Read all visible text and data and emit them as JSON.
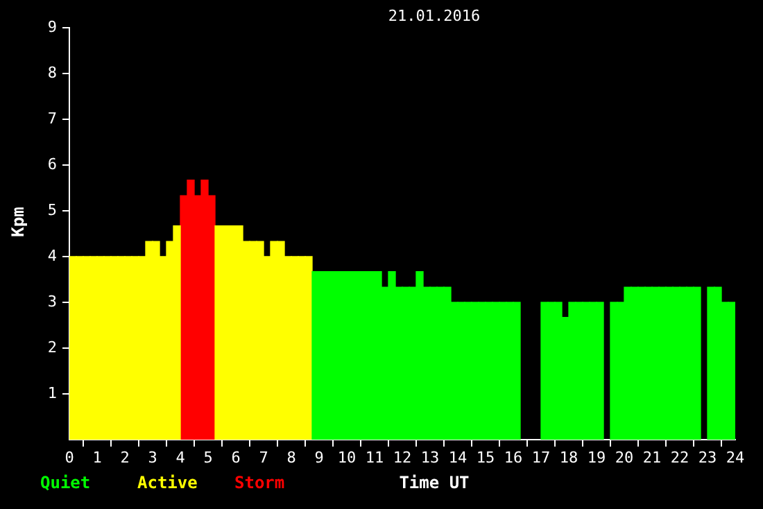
{
  "chart_data": {
    "type": "histogram",
    "title": "21.01.2016",
    "xlabel": "Time UT",
    "ylabel": "Kpm",
    "bins": [
      0,
      0.25,
      0.5,
      0.75,
      1,
      1.25,
      1.5,
      1.75,
      2,
      2.25,
      2.5,
      2.75,
      3,
      3.25,
      3.5,
      3.75,
      4,
      4.25,
      4.5,
      4.75,
      5,
      5.25,
      5.5,
      5.75,
      6,
      6.25,
      6.5,
      6.75,
      7,
      7.25,
      7.5,
      7.75,
      8,
      8.25,
      8.5,
      8.75,
      9,
      9.25,
      9.5,
      9.75,
      10,
      10.25,
      10.5,
      10.75,
      11,
      11.25,
      11.5,
      11.75,
      12,
      12.25,
      12.5,
      12.75,
      13,
      13.25,
      13.5,
      13.75,
      14,
      14.25,
      14.5,
      14.75,
      15,
      15.25,
      15.5,
      15.75,
      16,
      16.25,
      16.5,
      16.75,
      17,
      17.25,
      17.5,
      17.75,
      18,
      18.25,
      18.5,
      18.75,
      19,
      19.25,
      19.5,
      19.75,
      20,
      20.25,
      20.5,
      20.75,
      21,
      21.25,
      21.5,
      21.75,
      22,
      22.25,
      22.5,
      22.75,
      23,
      23.25,
      23.5,
      23.75,
      24
    ],
    "series": [
      {
        "name": "Quiet",
        "color": "#00ff00",
        "values": [
          null,
          null,
          null,
          null,
          null,
          null,
          null,
          null,
          null,
          null,
          null,
          null,
          null,
          null,
          null,
          null,
          null,
          null,
          null,
          null,
          null,
          null,
          null,
          null,
          null,
          null,
          null,
          null,
          null,
          null,
          null,
          null,
          null,
          null,
          null,
          3.67,
          3.67,
          3.67,
          3.67,
          3.67,
          3.67,
          3.67,
          3.67,
          3.67,
          3.67,
          3.33,
          3.67,
          3.33,
          3.33,
          3.33,
          3.67,
          3.33,
          3.33,
          3.33,
          3.33,
          3,
          3,
          3,
          3,
          3,
          3,
          3,
          3,
          3,
          3,
          null,
          null,
          null,
          3,
          3,
          3,
          2.67,
          3,
          3,
          3,
          3,
          3,
          null,
          3,
          3,
          3.33,
          3.33,
          3.33,
          3.33,
          3.33,
          3.33,
          3.33,
          3.33,
          3.33,
          3.33,
          3.33,
          null,
          3.33,
          3.33,
          3,
          3
        ]
      },
      {
        "name": "Active",
        "color": "#ffff00",
        "values": [
          4,
          4,
          4,
          4,
          4,
          4,
          4,
          4,
          4,
          4,
          4,
          4.33,
          4.33,
          4,
          4.33,
          4.67,
          null,
          null,
          null,
          null,
          null,
          4.67,
          4.67,
          4.67,
          4.67,
          4.33,
          4.33,
          4.33,
          4,
          4.33,
          4.33,
          4,
          4,
          4,
          4,
          null,
          null,
          null,
          null,
          null,
          null,
          null,
          null,
          null,
          null,
          null,
          null,
          null,
          null,
          null,
          null,
          null,
          null,
          null,
          null,
          null,
          null,
          null,
          null,
          null,
          null,
          null,
          null,
          null,
          null,
          null,
          null,
          null,
          null,
          null,
          null,
          null,
          null,
          null,
          null,
          null,
          null,
          null,
          null,
          null,
          null,
          null,
          null,
          null,
          null,
          null,
          null,
          null,
          null,
          null,
          null,
          null,
          null,
          null,
          null,
          null
        ]
      },
      {
        "name": "Storm",
        "color": "#ff0000",
        "values": [
          null,
          null,
          null,
          null,
          null,
          null,
          null,
          null,
          null,
          null,
          null,
          null,
          null,
          null,
          null,
          null,
          5.33,
          5.67,
          5.33,
          5.67,
          5.33,
          null,
          null,
          null,
          null,
          null,
          null,
          null,
          null,
          null,
          null,
          null,
          null,
          null,
          null,
          null,
          null,
          null,
          null,
          null,
          null,
          null,
          null,
          null,
          null,
          null,
          null,
          null,
          null,
          null,
          null,
          null,
          null,
          null,
          null,
          null,
          null,
          null,
          null,
          null,
          null,
          null,
          null,
          null,
          null,
          null,
          null,
          null,
          null,
          null,
          null,
          null,
          null,
          null,
          null,
          null,
          null,
          null,
          null,
          null,
          null,
          null,
          null,
          null,
          null,
          null,
          null,
          null,
          null,
          null,
          null,
          null,
          null,
          null,
          null,
          null
        ]
      }
    ],
    "xlim": [
      0,
      24
    ],
    "xticks": [
      0,
      1,
      2,
      3,
      4,
      5,
      6,
      7,
      8,
      9,
      10,
      11,
      12,
      13,
      14,
      15,
      16,
      17,
      18,
      19,
      20,
      21,
      22,
      23,
      24
    ],
    "ylim": [
      0,
      9
    ],
    "yticks": [
      1,
      2,
      3,
      4,
      5,
      6,
      7,
      8,
      9
    ],
    "grid": false,
    "legend": "bottom left"
  }
}
